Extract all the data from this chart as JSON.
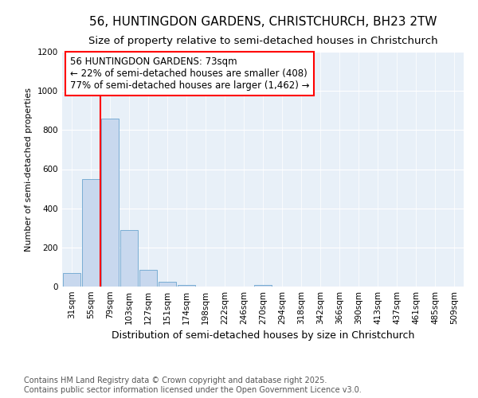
{
  "title": "56, HUNTINGDON GARDENS, CHRISTCHURCH, BH23 2TW",
  "subtitle": "Size of property relative to semi-detached houses in Christchurch",
  "xlabel": "Distribution of semi-detached houses by size in Christchurch",
  "ylabel": "Number of semi-detached properties",
  "categories": [
    "31sqm",
    "55sqm",
    "79sqm",
    "103sqm",
    "127sqm",
    "151sqm",
    "174sqm",
    "198sqm",
    "222sqm",
    "246sqm",
    "270sqm",
    "294sqm",
    "318sqm",
    "342sqm",
    "366sqm",
    "390sqm",
    "413sqm",
    "437sqm",
    "461sqm",
    "485sqm",
    "509sqm"
  ],
  "values": [
    70,
    550,
    860,
    290,
    85,
    25,
    10,
    0,
    0,
    0,
    10,
    0,
    0,
    0,
    0,
    0,
    0,
    0,
    0,
    0,
    0
  ],
  "bar_color": "#c8d8ee",
  "bar_edge_color": "#7aadd4",
  "red_line_x": 1.5,
  "annotation_text": "56 HUNTINGDON GARDENS: 73sqm\n← 22% of semi-detached houses are smaller (408)\n77% of semi-detached houses are larger (1,462) →",
  "annotation_box_color": "#ffffff",
  "annotation_box_edgecolor": "red",
  "red_line_color": "red",
  "ylim": [
    0,
    1200
  ],
  "yticks": [
    0,
    200,
    400,
    600,
    800,
    1000,
    1200
  ],
  "background_color": "#ffffff",
  "plot_bg_color": "#e8f0f8",
  "grid_color": "#ffffff",
  "footer": "Contains HM Land Registry data © Crown copyright and database right 2025.\nContains public sector information licensed under the Open Government Licence v3.0.",
  "title_fontsize": 11,
  "subtitle_fontsize": 9.5,
  "annotation_fontsize": 8.5,
  "ylabel_fontsize": 8,
  "xlabel_fontsize": 9,
  "footer_fontsize": 7,
  "tick_fontsize": 7.5
}
